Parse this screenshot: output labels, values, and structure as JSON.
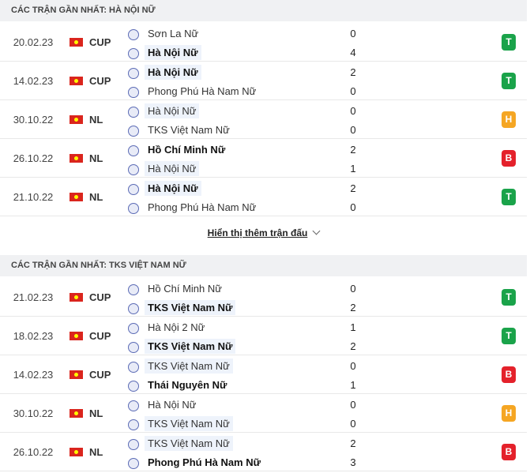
{
  "sections": [
    {
      "title": "CÁC TRẬN GẦN NHẤT: HÀ NỘI NỮ",
      "matches": [
        {
          "date": "20.02.23",
          "competition": "CUP",
          "home": {
            "name": "Sơn La Nữ",
            "score": 0
          },
          "away": {
            "name": "Hà Nội Nữ",
            "score": 4
          },
          "highlight": "away",
          "result": "T",
          "result_color": "#1aa34a"
        },
        {
          "date": "14.02.23",
          "competition": "CUP",
          "home": {
            "name": "Hà Nội Nữ",
            "score": 2
          },
          "away": {
            "name": "Phong Phú Hà Nam Nữ",
            "score": 0
          },
          "highlight": "home",
          "result": "T",
          "result_color": "#1aa34a"
        },
        {
          "date": "30.10.22",
          "competition": "NL",
          "home": {
            "name": "Hà Nội Nữ",
            "score": 0
          },
          "away": {
            "name": "TKS Việt Nam Nữ",
            "score": 0
          },
          "highlight": "home",
          "result": "H",
          "result_color": "#f5a623"
        },
        {
          "date": "26.10.22",
          "competition": "NL",
          "home": {
            "name": "Hồ Chí Minh Nữ",
            "score": 2
          },
          "away": {
            "name": "Hà Nội Nữ",
            "score": 1
          },
          "highlight": "away",
          "result": "B",
          "result_color": "#e4212b"
        },
        {
          "date": "21.10.22",
          "competition": "NL",
          "home": {
            "name": "Hà Nội Nữ",
            "score": 2
          },
          "away": {
            "name": "Phong Phú Hà Nam Nữ",
            "score": 0
          },
          "highlight": "home",
          "result": "T",
          "result_color": "#1aa34a"
        }
      ],
      "more": "Hiển thị thêm trận đấu"
    },
    {
      "title": "CÁC TRẬN GẦN NHẤT: TKS VIỆT NAM NỮ",
      "matches": [
        {
          "date": "21.02.23",
          "competition": "CUP",
          "home": {
            "name": "Hồ Chí Minh Nữ",
            "score": 0
          },
          "away": {
            "name": "TKS Việt Nam Nữ",
            "score": 2
          },
          "highlight": "away",
          "result": "T",
          "result_color": "#1aa34a"
        },
        {
          "date": "18.02.23",
          "competition": "CUP",
          "home": {
            "name": "Hà Nội 2 Nữ",
            "score": 1
          },
          "away": {
            "name": "TKS Việt Nam Nữ",
            "score": 2
          },
          "highlight": "away",
          "result": "T",
          "result_color": "#1aa34a"
        },
        {
          "date": "14.02.23",
          "competition": "CUP",
          "home": {
            "name": "TKS Việt Nam Nữ",
            "score": 0
          },
          "away": {
            "name": "Thái Nguyên Nữ",
            "score": 1
          },
          "highlight": "home",
          "result": "B",
          "result_color": "#e4212b"
        },
        {
          "date": "30.10.22",
          "competition": "NL",
          "home": {
            "name": "Hà Nội Nữ",
            "score": 0
          },
          "away": {
            "name": "TKS Việt Nam Nữ",
            "score": 0
          },
          "highlight": "away",
          "result": "H",
          "result_color": "#f5a623"
        },
        {
          "date": "26.10.22",
          "competition": "NL",
          "home": {
            "name": "TKS Việt Nam Nữ",
            "score": 2
          },
          "away": {
            "name": "Phong Phú Hà Nam Nữ",
            "score": 3
          },
          "highlight": "home",
          "result": "B",
          "result_color": "#e4212b"
        }
      ]
    }
  ]
}
